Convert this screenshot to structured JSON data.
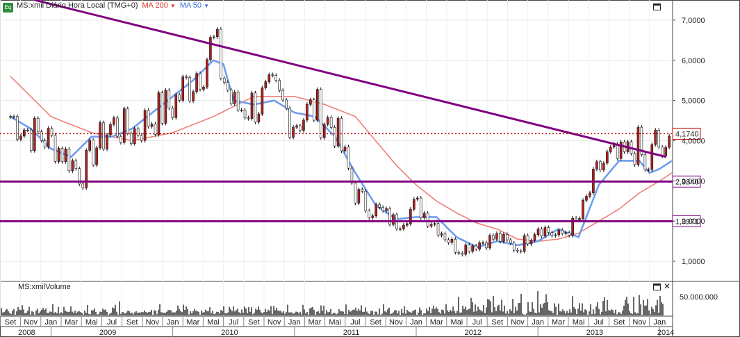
{
  "legend": {
    "badge": "Eq",
    "symbol_label": "MS:xmil Diário Hora Local (TMG+0)",
    "ma200_label": "MA 200",
    "ma50_label": "MA 50"
  },
  "volume_title": "MS:xmilVolume",
  "chart_data": {
    "type": "line",
    "price_axis": {
      "min": 0.5,
      "max": 7.5,
      "ticks": [
        "7,0000",
        "6,0000",
        "5,0000",
        "4,0000",
        "3,0000",
        "2,0000",
        "1,0000"
      ]
    },
    "volume_axis": {
      "ticks": [
        "50.000.000"
      ]
    },
    "months": [
      "Set",
      "Nov",
      "Jan",
      "Mar",
      "Mai",
      "Jul",
      "Set",
      "Nov",
      "Jan",
      "Mar",
      "Mai",
      "Jul",
      "Set",
      "Nov",
      "Jan",
      "Mar",
      "Mai",
      "Jul",
      "Set",
      "Nov",
      "Jan",
      "Mar",
      "Mai",
      "Jul",
      "Set",
      "Nov",
      "Jan",
      "Mar",
      "Mai",
      "Jul",
      "Set",
      "Nov",
      "Jan"
    ],
    "years": [
      "2008",
      "2009",
      "2010",
      "2011",
      "2012",
      "2013",
      "2014"
    ],
    "price_series": {
      "name": "MS:xmil",
      "x_month_index": [
        0,
        1,
        2,
        3,
        3.5,
        4,
        5,
        6,
        7,
        8,
        9,
        10,
        11,
        12,
        13,
        14,
        15,
        16,
        17,
        17.5,
        18,
        19,
        20,
        21,
        22,
        23,
        24,
        25,
        26,
        27,
        28,
        29,
        29.5,
        30,
        31,
        31.3,
        31.8,
        32.3,
        32.6
      ],
      "close": [
        4.6,
        4.2,
        4.0,
        3.5,
        3.1,
        3.7,
        4.4,
        4.2,
        4.6,
        4.9,
        5.6,
        6.4,
        4.8,
        4.9,
        5.1,
        4.5,
        4.8,
        4.3,
        2.7,
        2.4,
        2.3,
        1.95,
        2.4,
        1.9,
        1.3,
        1.45,
        1.6,
        1.3,
        1.9,
        1.6,
        2.0,
        3.3,
        3.6,
        3.5,
        3.9,
        3.1,
        4.0,
        3.5,
        4.2
      ]
    },
    "ma50": {
      "name": "MA 50",
      "x_month_index": [
        0,
        1,
        2,
        3,
        4,
        5,
        6,
        7,
        8,
        9,
        10,
        10.5,
        11,
        12,
        13,
        14,
        15,
        16,
        17,
        18,
        19,
        20,
        21,
        22,
        23,
        24,
        25,
        26,
        27,
        28,
        29,
        30,
        31,
        31.5,
        32,
        32.6
      ],
      "values": [
        4.6,
        4.3,
        3.8,
        3.6,
        4.1,
        4.1,
        4.3,
        4.7,
        5.1,
        5.5,
        6.0,
        5.9,
        5.0,
        4.9,
        5.0,
        4.7,
        4.6,
        4.1,
        3.2,
        2.4,
        2.05,
        2.1,
        2.1,
        1.6,
        1.35,
        1.5,
        1.4,
        1.5,
        1.8,
        1.6,
        2.9,
        3.5,
        3.5,
        3.2,
        3.3,
        3.5
      ]
    },
    "ma200": {
      "name": "MA 200",
      "x_month_index": [
        0,
        2,
        4,
        6,
        8,
        10,
        12,
        14,
        15.5,
        17,
        18,
        19,
        20,
        21,
        22,
        23,
        24,
        25,
        26,
        27,
        28,
        29,
        30,
        31,
        32,
        32.6
      ],
      "values": [
        5.6,
        4.6,
        4.2,
        4.0,
        4.2,
        4.6,
        5.1,
        5.1,
        4.9,
        4.6,
        4.0,
        3.4,
        2.9,
        2.5,
        2.2,
        1.95,
        1.8,
        1.55,
        1.5,
        1.55,
        1.7,
        2.0,
        2.3,
        2.7,
        3.0,
        3.2
      ]
    },
    "trendline": {
      "from": {
        "x_month_index": 1.2,
        "value": 7.5
      },
      "to": {
        "x_month_index": 32.3,
        "value": 3.6
      }
    },
    "horizontal_lines": [
      {
        "value": 4.174,
        "label": "4,1740",
        "style": "dotted",
        "color": "#c00000"
      },
      {
        "value": 2.984,
        "label": "2,9840",
        "style": "solid",
        "color": "#800080"
      },
      {
        "value": 1.9971,
        "label": "1,9971",
        "style": "solid",
        "color": "#800080"
      }
    ],
    "colors": {
      "price": "#000000",
      "ma50": "#6f9df0",
      "ma200": "#f07f7a",
      "trendline": "#800080",
      "volume": "#000000"
    },
    "grid": true
  }
}
